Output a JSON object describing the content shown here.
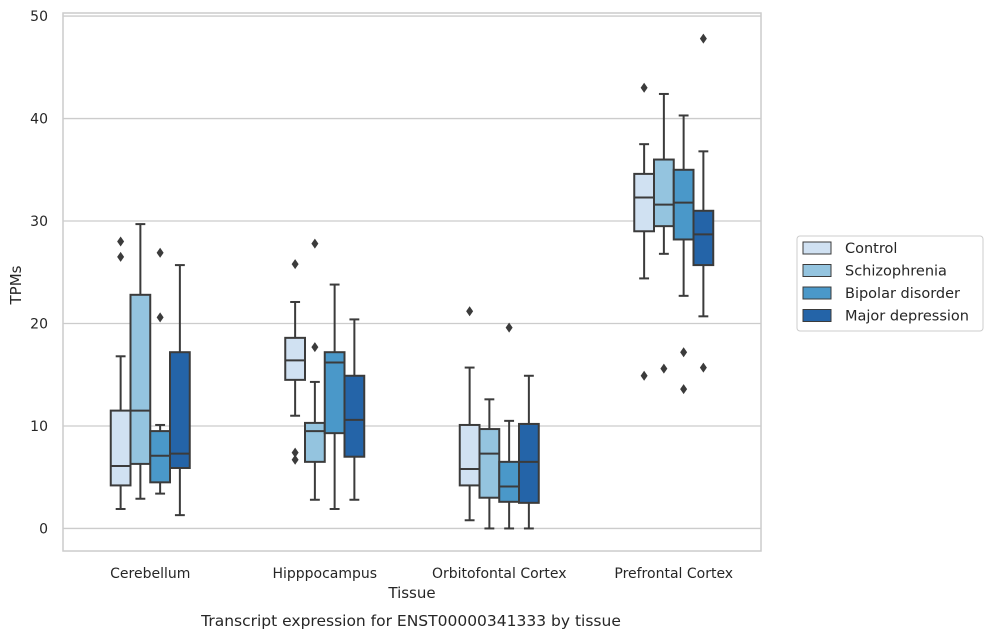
{
  "caption": "Transcript expression for ENST00000341333 by tissue",
  "chart_data": {
    "type": "box",
    "xlabel": "Tissue",
    "ylabel": "TPMs",
    "ylim": [
      -2.2,
      50.3
    ],
    "yticks": [
      0,
      10,
      20,
      30,
      40,
      50
    ],
    "grid": "horizontal",
    "legend_position": "right-outside",
    "categories": [
      "Cerebellum",
      "Hipppocampus",
      "Orbitofontal Cortex",
      "Prefrontal Cortex"
    ],
    "series": [
      {
        "name": "Control",
        "color": "#d0e1f2",
        "boxes": [
          {
            "whislo": 1.9,
            "q1": 4.2,
            "med": 6.1,
            "q3": 11.5,
            "whishi": 16.8,
            "fliers": [
              26.5,
              28.0
            ]
          },
          {
            "whislo": 11.0,
            "q1": 14.5,
            "med": 16.4,
            "q3": 18.6,
            "whishi": 22.1,
            "fliers": [
              25.8,
              7.4,
              6.7
            ]
          },
          {
            "whislo": 0.8,
            "q1": 4.2,
            "med": 5.8,
            "q3": 10.1,
            "whishi": 15.7,
            "fliers": [
              21.2
            ]
          },
          {
            "whislo": 24.4,
            "q1": 29.0,
            "med": 32.3,
            "q3": 34.6,
            "whishi": 37.5,
            "fliers": [
              43.0,
              14.9
            ]
          }
        ]
      },
      {
        "name": "Schizophrenia",
        "color": "#94c4df",
        "boxes": [
          {
            "whislo": 2.9,
            "q1": 6.3,
            "med": 11.5,
            "q3": 22.8,
            "whishi": 29.7,
            "fliers": []
          },
          {
            "whislo": 2.8,
            "q1": 6.5,
            "med": 9.5,
            "q3": 10.3,
            "whishi": 14.3,
            "fliers": [
              17.7,
              27.8
            ]
          },
          {
            "whislo": 0.0,
            "q1": 3.0,
            "med": 7.3,
            "q3": 9.7,
            "whishi": 12.6,
            "fliers": []
          },
          {
            "whislo": 26.8,
            "q1": 29.5,
            "med": 31.6,
            "q3": 36.0,
            "whishi": 42.4,
            "fliers": [
              15.6
            ]
          }
        ]
      },
      {
        "name": "Bipolar disorder",
        "color": "#4a98c9",
        "boxes": [
          {
            "whislo": 3.4,
            "q1": 4.5,
            "med": 7.1,
            "q3": 9.5,
            "whishi": 10.1,
            "fliers": [
              20.6,
              26.9
            ]
          },
          {
            "whislo": 1.9,
            "q1": 9.3,
            "med": 16.2,
            "q3": 17.2,
            "whishi": 23.8,
            "fliers": []
          },
          {
            "whislo": 0.0,
            "q1": 2.6,
            "med": 4.1,
            "q3": 6.5,
            "whishi": 10.5,
            "fliers": [
              19.6
            ]
          },
          {
            "whislo": 22.7,
            "q1": 28.2,
            "med": 31.8,
            "q3": 35.0,
            "whishi": 40.3,
            "fliers": [
              17.2,
              13.6
            ]
          }
        ]
      },
      {
        "name": "Major depression",
        "color": "#2464a8",
        "boxes": [
          {
            "whislo": 1.3,
            "q1": 5.9,
            "med": 7.3,
            "q3": 17.2,
            "whishi": 25.7,
            "fliers": []
          },
          {
            "whislo": 2.8,
            "q1": 7.0,
            "med": 10.6,
            "q3": 14.9,
            "whishi": 20.4,
            "fliers": []
          },
          {
            "whislo": 0.0,
            "q1": 2.5,
            "med": 6.5,
            "q3": 10.2,
            "whishi": 14.9,
            "fliers": []
          },
          {
            "whislo": 20.7,
            "q1": 25.7,
            "med": 28.7,
            "q3": 31.0,
            "whishi": 36.8,
            "fliers": [
              15.7,
              47.8
            ]
          }
        ]
      }
    ]
  }
}
